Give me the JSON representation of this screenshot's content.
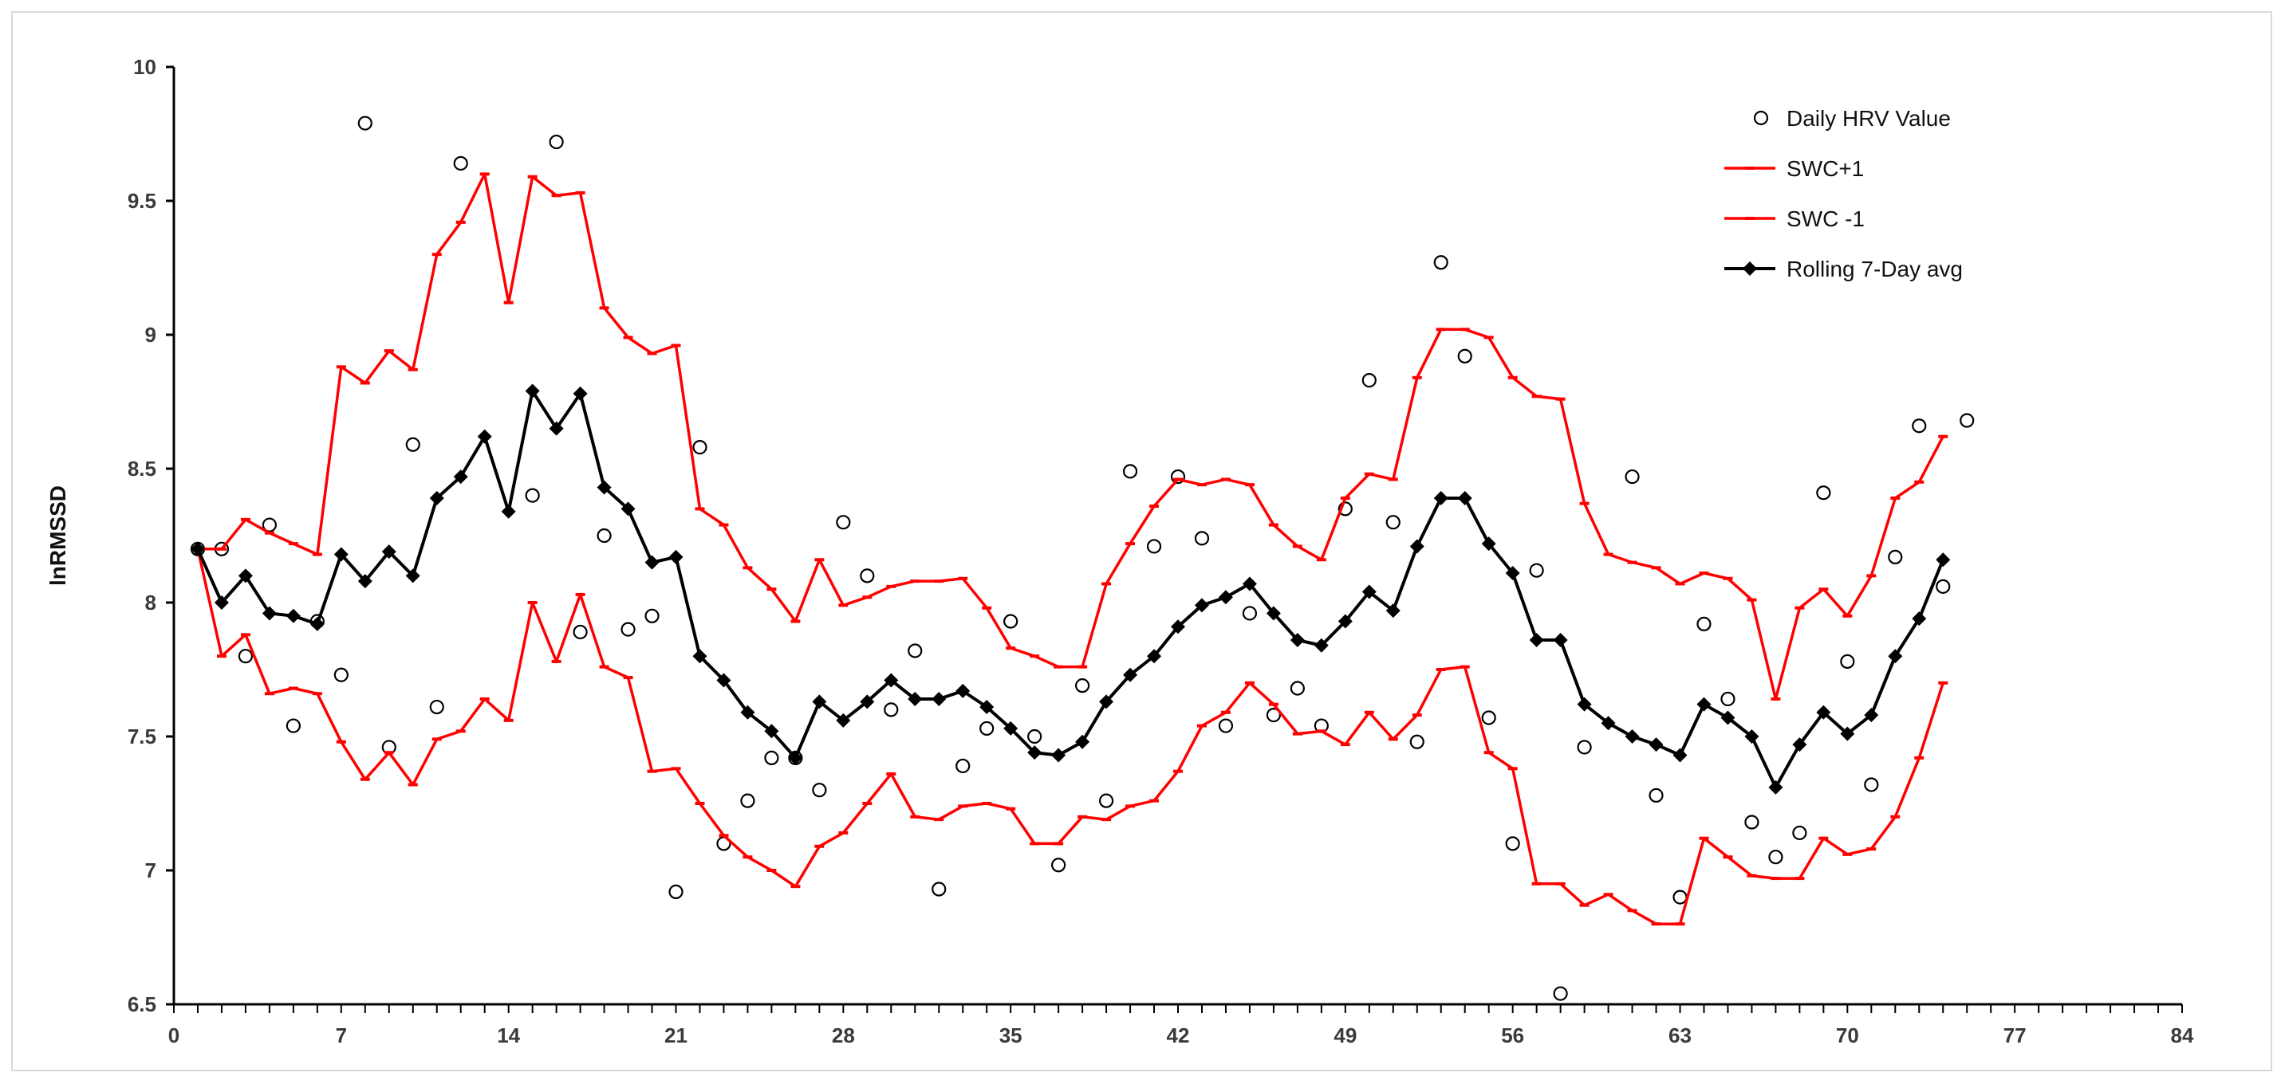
{
  "chart_data": {
    "type": "line",
    "xlabel": "",
    "ylabel": "lnRMSSD",
    "xlim": [
      0,
      84
    ],
    "ylim": [
      6.5,
      10
    ],
    "xticks": [
      0,
      7,
      14,
      21,
      28,
      35,
      42,
      49,
      56,
      63,
      70,
      77,
      84
    ],
    "yticks": [
      6.5,
      7,
      7.5,
      8,
      8.5,
      9,
      9.5,
      10
    ],
    "xtick_labels": [
      "0",
      "7",
      "14",
      "21",
      "28",
      "35",
      "42",
      "49",
      "56",
      "63",
      "70",
      "77",
      "84"
    ],
    "ytick_labels": [
      "6.5",
      "7",
      "7.5",
      "8",
      "8.5",
      "9",
      "9.5",
      "10"
    ],
    "grid": false,
    "legend_position": "top-right",
    "series": [
      {
        "name": "Daily HRV Value",
        "style": "scatter",
        "color": "#000000",
        "marker": "open-circle",
        "x": [
          1,
          2,
          3,
          4,
          5,
          6,
          7,
          8,
          9,
          10,
          11,
          12,
          13,
          14,
          15,
          16,
          17,
          18,
          19,
          20,
          21,
          22,
          23,
          24,
          25,
          26,
          27,
          28,
          29,
          30,
          31,
          32,
          33,
          34,
          35,
          36,
          37,
          38,
          39,
          40,
          41,
          42,
          43,
          44,
          45,
          46,
          47,
          48,
          49,
          50,
          51,
          52,
          53,
          54,
          55,
          56,
          57,
          58,
          59,
          60,
          61,
          62,
          63,
          64,
          65,
          66,
          67,
          68,
          69,
          70,
          71,
          72,
          73,
          74,
          75
        ],
        "values": [
          8.2,
          8.2,
          7.8,
          8.29,
          7.54,
          7.93,
          7.73,
          9.79,
          7.46,
          8.59,
          7.61,
          9.64,
          null,
          null,
          8.4,
          9.72,
          7.89,
          8.25,
          7.9,
          7.95,
          6.92,
          8.58,
          7.1,
          7.26,
          7.42,
          7.42,
          7.3,
          8.3,
          8.1,
          7.6,
          7.82,
          6.93,
          7.39,
          7.53,
          7.93,
          7.5,
          7.02,
          7.69,
          7.26,
          8.49,
          8.21,
          8.47,
          8.24,
          7.54,
          7.96,
          7.58,
          7.68,
          7.54,
          8.35,
          8.83,
          8.3,
          7.48,
          9.27,
          8.92,
          7.57,
          7.1,
          8.12,
          6.54,
          7.46,
          null,
          8.47,
          7.28,
          6.9,
          7.92,
          7.64,
          7.18,
          7.05,
          7.14,
          8.41,
          7.78,
          7.32,
          8.17,
          8.66,
          8.06,
          8.68
        ]
      },
      {
        "name": "SWC+1",
        "style": "line",
        "color": "#ff0000",
        "x": [
          1,
          2,
          3,
          4,
          5,
          6,
          7,
          8,
          9,
          10,
          11,
          12,
          13,
          14,
          15,
          16,
          17,
          18,
          19,
          20,
          21,
          22,
          23,
          24,
          25,
          26,
          27,
          28,
          29,
          30,
          31,
          32,
          33,
          34,
          35,
          36,
          37,
          38,
          39,
          40,
          41,
          42,
          43,
          44,
          45,
          46,
          47,
          48,
          49,
          50,
          51,
          52,
          53,
          54,
          55,
          56,
          57,
          58,
          59,
          60,
          61,
          62,
          63,
          64,
          65,
          66,
          67,
          68,
          69,
          70,
          71,
          72,
          73,
          74
        ],
        "values": [
          8.2,
          8.2,
          8.31,
          8.26,
          8.22,
          8.18,
          8.88,
          8.82,
          8.94,
          8.87,
          9.3,
          9.42,
          9.6,
          9.12,
          9.59,
          9.52,
          9.53,
          9.1,
          8.99,
          8.93,
          8.96,
          8.35,
          8.29,
          8.13,
          8.05,
          7.93,
          8.16,
          7.99,
          8.02,
          8.06,
          8.08,
          8.08,
          8.09,
          7.98,
          7.83,
          7.8,
          7.76,
          7.76,
          8.07,
          8.22,
          8.36,
          8.46,
          8.44,
          8.46,
          8.44,
          8.29,
          8.21,
          8.16,
          8.39,
          8.48,
          8.46,
          8.84,
          9.02,
          9.02,
          8.99,
          8.84,
          8.77,
          8.76,
          8.37,
          8.18,
          8.15,
          8.13,
          8.07,
          8.11,
          8.09,
          8.01,
          7.64,
          7.98,
          8.05,
          7.95,
          8.1,
          8.39,
          8.45,
          8.62
        ]
      },
      {
        "name": "SWC -1",
        "style": "line",
        "color": "#ff0000",
        "x": [
          1,
          2,
          3,
          4,
          5,
          6,
          7,
          8,
          9,
          10,
          11,
          12,
          13,
          14,
          15,
          16,
          17,
          18,
          19,
          20,
          21,
          22,
          23,
          24,
          25,
          26,
          27,
          28,
          29,
          30,
          31,
          32,
          33,
          34,
          35,
          36,
          37,
          38,
          39,
          40,
          41,
          42,
          43,
          44,
          45,
          46,
          47,
          48,
          49,
          50,
          51,
          52,
          53,
          54,
          55,
          56,
          57,
          58,
          59,
          60,
          61,
          62,
          63,
          64,
          65,
          66,
          67,
          68,
          69,
          70,
          71,
          72,
          73,
          74
        ],
        "values": [
          8.2,
          7.8,
          7.88,
          7.66,
          7.68,
          7.66,
          7.48,
          7.34,
          7.44,
          7.32,
          7.49,
          7.52,
          7.64,
          7.56,
          8.0,
          7.78,
          8.03,
          7.76,
          7.72,
          7.37,
          7.38,
          7.25,
          7.13,
          7.05,
          7.0,
          6.94,
          7.09,
          7.14,
          7.25,
          7.36,
          7.2,
          7.19,
          7.24,
          7.25,
          7.23,
          7.1,
          7.1,
          7.2,
          7.19,
          7.24,
          7.26,
          7.37,
          7.54,
          7.59,
          7.7,
          7.62,
          7.51,
          7.52,
          7.47,
          7.59,
          7.49,
          7.58,
          7.75,
          7.76,
          7.44,
          7.38,
          6.95,
          6.95,
          6.87,
          6.91,
          6.85,
          6.8,
          6.8,
          7.12,
          7.05,
          6.98,
          6.97,
          6.97,
          7.12,
          7.06,
          7.08,
          7.2,
          7.42,
          7.7
        ]
      },
      {
        "name": "Rolling 7-Day avg",
        "style": "line",
        "color": "#000000",
        "marker": "diamond",
        "x": [
          1,
          2,
          3,
          4,
          5,
          6,
          7,
          8,
          9,
          10,
          11,
          12,
          13,
          14,
          15,
          16,
          17,
          18,
          19,
          20,
          21,
          22,
          23,
          24,
          25,
          26,
          27,
          28,
          29,
          30,
          31,
          32,
          33,
          34,
          35,
          36,
          37,
          38,
          39,
          40,
          41,
          42,
          43,
          44,
          45,
          46,
          47,
          48,
          49,
          50,
          51,
          52,
          53,
          54,
          55,
          56,
          57,
          58,
          59,
          60,
          61,
          62,
          63,
          64,
          65,
          66,
          67,
          68,
          69,
          70,
          71,
          72,
          73,
          74
        ],
        "values": [
          8.2,
          8.0,
          8.1,
          7.96,
          7.95,
          7.92,
          8.18,
          8.08,
          8.19,
          8.1,
          8.39,
          8.47,
          8.62,
          8.34,
          8.79,
          8.65,
          8.78,
          8.43,
          8.35,
          8.15,
          8.17,
          7.8,
          7.71,
          7.59,
          7.52,
          7.42,
          7.63,
          7.56,
          7.63,
          7.71,
          7.64,
          7.64,
          7.67,
          7.61,
          7.53,
          7.44,
          7.43,
          7.48,
          7.63,
          7.73,
          7.8,
          7.91,
          7.99,
          8.02,
          8.07,
          7.96,
          7.86,
          7.84,
          7.93,
          8.04,
          7.97,
          8.21,
          8.39,
          8.39,
          8.22,
          8.11,
          7.86,
          7.86,
          7.62,
          7.55,
          7.5,
          7.47,
          7.43,
          7.62,
          7.57,
          7.5,
          7.31,
          7.47,
          7.59,
          7.51,
          7.58,
          7.8,
          7.94,
          8.16
        ]
      }
    ]
  }
}
